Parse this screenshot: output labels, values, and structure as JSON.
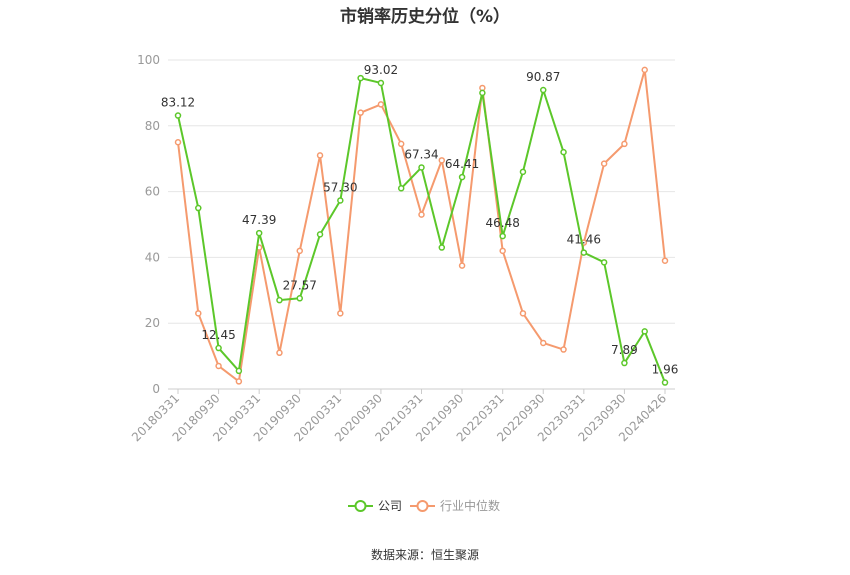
{
  "chart_data": {
    "type": "line",
    "title": "市销率历史分位（%）",
    "source": "数据来源：恒生聚源",
    "ylim": [
      0,
      100
    ],
    "y_ticks": [
      0,
      20,
      40,
      60,
      80,
      100
    ],
    "grid": true,
    "legend_placement": "bottom-center",
    "x": [
      "20180331",
      "20180630",
      "20180930",
      "20181231",
      "20190331",
      "20190630",
      "20190930",
      "20191231",
      "20200331",
      "20200630",
      "20200930",
      "20201231",
      "20210331",
      "20210630",
      "20210930",
      "20211231",
      "20220331",
      "20220630",
      "20220930",
      "20221231",
      "20230331",
      "20230630",
      "20230930",
      "20231231",
      "20240426"
    ],
    "x_tick_labels": [
      "20180331",
      "20180930",
      "20190331",
      "20190930",
      "20200331",
      "20200930",
      "20210331",
      "20210930",
      "20220331",
      "20220930",
      "20230331",
      "20230930",
      "20240426"
    ],
    "series": [
      {
        "name": "公司",
        "color": "#5cc72a",
        "values": [
          83.12,
          55.0,
          12.45,
          5.5,
          47.39,
          27.0,
          27.57,
          47.0,
          57.3,
          94.5,
          93.02,
          61.0,
          67.34,
          43.0,
          64.41,
          90.0,
          46.48,
          66.0,
          90.87,
          72.0,
          41.46,
          38.5,
          7.89,
          17.5,
          1.96
        ],
        "labels": {
          "0": "83.12",
          "2": "12.45",
          "4": "47.39",
          "6": "27.57",
          "8": "57.30",
          "10": "93.02",
          "12": "67.34",
          "14": "64.41",
          "16": "46.48",
          "18": "90.87",
          "20": "41.46",
          "22": "7.89",
          "24": "1.96"
        }
      },
      {
        "name": "行业中位数",
        "color": "#f59a6e",
        "values": [
          75.0,
          23.0,
          7.0,
          2.3,
          43.0,
          11.0,
          42.0,
          71.0,
          23.0,
          84.0,
          86.5,
          74.5,
          53.0,
          69.5,
          37.5,
          91.5,
          42.0,
          23.0,
          14.0,
          12.0,
          44.5,
          68.5,
          74.5,
          97.0,
          39.0
        ]
      }
    ]
  }
}
